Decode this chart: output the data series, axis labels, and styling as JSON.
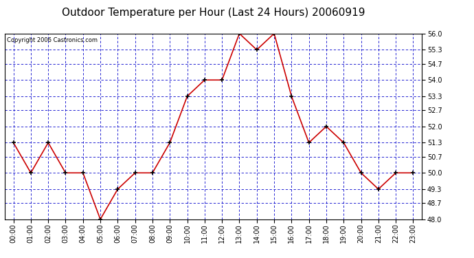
{
  "title": "Outdoor Temperature per Hour (Last 24 Hours) 20060919",
  "copyright_text": "Copyright 2006 Castronics.com",
  "hours": [
    "00:00",
    "01:00",
    "02:00",
    "03:00",
    "04:00",
    "05:00",
    "06:00",
    "07:00",
    "08:00",
    "09:00",
    "10:00",
    "11:00",
    "12:00",
    "13:00",
    "14:00",
    "15:00",
    "16:00",
    "17:00",
    "18:00",
    "19:00",
    "20:00",
    "21:00",
    "22:00",
    "23:00"
  ],
  "temperatures": [
    51.3,
    50.0,
    51.3,
    50.0,
    50.0,
    48.0,
    49.3,
    50.0,
    50.0,
    51.3,
    53.3,
    54.0,
    54.0,
    56.0,
    55.3,
    56.0,
    53.3,
    51.3,
    52.0,
    51.3,
    50.0,
    49.3,
    50.0,
    50.0
  ],
  "ylim_min": 48.0,
  "ylim_max": 56.0,
  "yticks": [
    48.0,
    48.7,
    49.3,
    50.0,
    50.7,
    51.3,
    52.0,
    52.7,
    53.3,
    54.0,
    54.7,
    55.3,
    56.0
  ],
  "line_color": "#cc0000",
  "marker_color": "#000000",
  "background_color": "#ffffff",
  "plot_bg_color": "#ffffff",
  "grid_color": "#0000cc",
  "title_fontsize": 11,
  "tick_fontsize": 7,
  "copyright_fontsize": 6
}
